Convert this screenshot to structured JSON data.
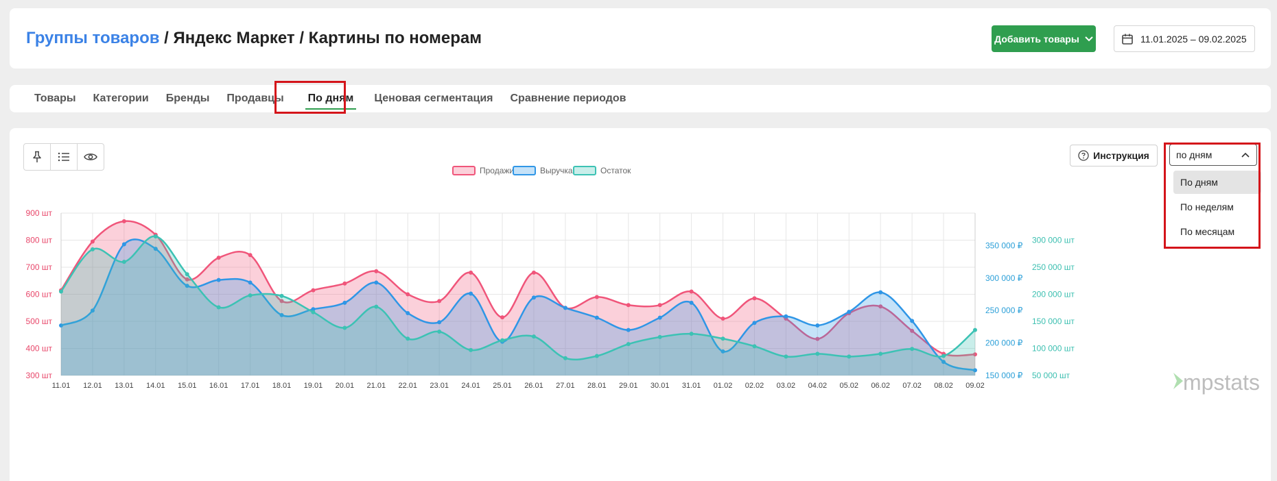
{
  "breadcrumb": {
    "link": "Группы товаров",
    "separator": "/",
    "part2": "Яндекс Маркет",
    "part3": "Картины по номерам"
  },
  "header": {
    "add_button": "Добавить товары",
    "date_range": "11.01.2025 – 09.02.2025"
  },
  "tabs": [
    {
      "label": "Товары"
    },
    {
      "label": "Категории"
    },
    {
      "label": "Бренды"
    },
    {
      "label": "Продавцы"
    },
    {
      "label": "По дням",
      "active": true
    },
    {
      "label": "Ценовая сегментация"
    },
    {
      "label": "Сравнение периодов"
    }
  ],
  "toolbar": {
    "icons": [
      "pin-icon",
      "list-icon",
      "eye-icon"
    ]
  },
  "help_button": "Инструкция",
  "period_select": {
    "value": "по дням",
    "options": [
      "По дням",
      "По неделям",
      "По месяцам"
    ],
    "selected_index": 0
  },
  "watermark": "mpstats",
  "colors": {
    "accent_green": "#2f9e4f",
    "link_blue": "#3b82e6",
    "highlight_red": "#d4141a",
    "sales": "#f0557a",
    "revenue": "#2f96e6",
    "stock": "#3cc2b4"
  },
  "chart_data": {
    "type": "area",
    "x": [
      "11.01",
      "12.01",
      "13.01",
      "14.01",
      "15.01",
      "16.01",
      "17.01",
      "18.01",
      "19.01",
      "20.01",
      "21.01",
      "22.01",
      "23.01",
      "24.01",
      "25.01",
      "26.01",
      "27.01",
      "28.01",
      "29.01",
      "30.01",
      "31.01",
      "01.02",
      "02.02",
      "03.02",
      "04.02",
      "05.02",
      "06.02",
      "07.02",
      "08.02",
      "09.02"
    ],
    "legend": [
      "Продажи",
      "Выручка",
      "Остаток"
    ],
    "axes": {
      "left": {
        "ticks": [
          "900 шт",
          "800 шт",
          "700 шт",
          "600 шт",
          "500 шт",
          "400 шт",
          "300 шт"
        ],
        "range": [
          300,
          900
        ]
      },
      "right_revenue": {
        "ticks": [
          "350 000 ₽",
          "300 000 ₽",
          "250 000 ₽",
          "200 000 ₽",
          "150 000 ₽"
        ],
        "range": [
          150000,
          400000
        ]
      },
      "right_stock": {
        "ticks": [
          "300 000 шт",
          "250 000 шт",
          "200 000 шт",
          "150 000 шт",
          "100 000 шт",
          "50 000 шт"
        ],
        "range": [
          50000,
          350000
        ]
      }
    },
    "series": [
      {
        "name": "Продажи",
        "axis": "left",
        "values": [
          615,
          795,
          870,
          820,
          655,
          735,
          745,
          575,
          615,
          640,
          685,
          600,
          575,
          680,
          515,
          680,
          550,
          590,
          560,
          560,
          610,
          510,
          585,
          510,
          435,
          530,
          555,
          465,
          380,
          378
        ]
      },
      {
        "name": "Выручка",
        "axis": "right_revenue",
        "values": [
          227000,
          250000,
          352000,
          345000,
          288000,
          297000,
          293000,
          243000,
          252000,
          262000,
          293000,
          246000,
          232000,
          276000,
          202000,
          270000,
          254000,
          239000,
          220000,
          239000,
          262000,
          187000,
          231000,
          241000,
          227000,
          248000,
          278000,
          234000,
          171000,
          158000
        ]
      },
      {
        "name": "Остаток",
        "axis": "right_stock",
        "values": [
          205000,
          283000,
          260000,
          307000,
          237000,
          176000,
          198000,
          197000,
          167000,
          138000,
          177000,
          118000,
          131000,
          97000,
          115000,
          122000,
          82000,
          86000,
          108000,
          121000,
          127000,
          118000,
          104000,
          85000,
          90000,
          85000,
          90000,
          99000,
          86000,
          134000
        ]
      }
    ],
    "grid": true
  }
}
